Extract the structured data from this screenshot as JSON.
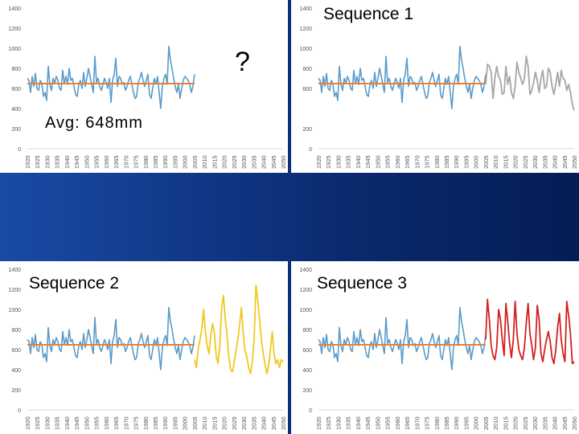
{
  "labels": {
    "avg": "Avg: 648mm",
    "question": "?",
    "seq1": "Sequence 1",
    "seq2": "Sequence 2",
    "seq3": "Sequence 3"
  },
  "colors": {
    "observed": "#5b9bc8",
    "average": "#e8803a",
    "sequence1": "#a6a6a6",
    "sequence2": "#f2c81e",
    "sequence3": "#d42020"
  },
  "chart_data": [
    {
      "type": "line",
      "title": "",
      "x_ticks": [
        "1920",
        "1925",
        "1930",
        "1935",
        "1940",
        "1945",
        "1950",
        "1955",
        "1960",
        "1965",
        "1970",
        "1975",
        "1980",
        "1985",
        "1990",
        "1995",
        "2000",
        "2005",
        "2010",
        "2015",
        "2020",
        "2025",
        "2030",
        "2035",
        "2040",
        "2045",
        "2050"
      ],
      "y_ticks": [
        "0",
        "200",
        "400",
        "600",
        "800",
        "1000",
        "1200",
        "1400"
      ],
      "ylim": [
        0,
        1400
      ],
      "xlim": [
        1920,
        2050
      ],
      "average_line": {
        "value": 648,
        "x": [
          1920,
          2005
        ]
      },
      "observed": {
        "start": 1920,
        "values": [
          700,
          680,
          560,
          720,
          620,
          750,
          600,
          580,
          680,
          650,
          520,
          560,
          480,
          820,
          640,
          580,
          700,
          650,
          720,
          680,
          600,
          580,
          780,
          650,
          720,
          640,
          800,
          680,
          700,
          620,
          540,
          520,
          640,
          680,
          600,
          760,
          620,
          700,
          800,
          720,
          640,
          560,
          920,
          660,
          700,
          620,
          580,
          640,
          700,
          660,
          600,
          700,
          460,
          680,
          740,
          900,
          620,
          720,
          700,
          640,
          660,
          580,
          620,
          680,
          720,
          640,
          560,
          500,
          520,
          660,
          700,
          760,
          680,
          620,
          680,
          740,
          540,
          500,
          600,
          700,
          640,
          720,
          560,
          400,
          620,
          700,
          740,
          640,
          1020,
          880,
          800,
          700,
          620,
          560,
          640,
          500,
          600,
          680,
          720,
          700,
          680,
          640,
          560,
          620,
          740
        ]
      },
      "projection": null
    },
    {
      "type": "line",
      "title": "",
      "series_name_label": "Sequence 1",
      "x_ticks": [
        "1920",
        "1925",
        "1930",
        "1935",
        "1940",
        "1945",
        "1950",
        "1955",
        "1960",
        "1965",
        "1970",
        "1975",
        "1980",
        "1985",
        "1990",
        "1995",
        "2000",
        "2005",
        "2010",
        "2015",
        "2020",
        "2025",
        "2030",
        "2035",
        "2040",
        "2045",
        "2050"
      ],
      "y_ticks": [
        "0",
        "200",
        "600",
        "800",
        "1000",
        "1200",
        "1400"
      ],
      "ylim": [
        0,
        1400
      ],
      "xlim": [
        1920,
        2050
      ],
      "average_line": {
        "value": 648,
        "x": [
          1920,
          2005
        ]
      },
      "observed": {
        "start": 1920,
        "values": [
          700,
          680,
          560,
          720,
          620,
          750,
          600,
          580,
          680,
          650,
          520,
          560,
          480,
          820,
          640,
          580,
          700,
          650,
          720,
          680,
          600,
          580,
          780,
          650,
          720,
          640,
          800,
          680,
          700,
          620,
          540,
          520,
          640,
          680,
          600,
          760,
          620,
          700,
          800,
          720,
          640,
          560,
          920,
          660,
          700,
          620,
          580,
          640,
          700,
          660,
          600,
          700,
          460,
          680,
          740,
          900,
          620,
          720,
          700,
          640,
          660,
          580,
          620,
          680,
          720,
          640,
          560,
          500,
          520,
          660,
          700,
          760,
          680,
          620,
          680,
          740,
          540,
          500,
          600,
          700,
          640,
          720,
          560,
          400,
          620,
          700,
          740,
          640,
          1020,
          880,
          800,
          700,
          620,
          560,
          640,
          500,
          600,
          680,
          720,
          700,
          680,
          640,
          560,
          620,
          740
        ]
      },
      "projection": {
        "start": 2005,
        "values": [
          640,
          840,
          820,
          760,
          500,
          700,
          820,
          720,
          680,
          540,
          560,
          820,
          640,
          720,
          560,
          500,
          620,
          860,
          760,
          700,
          640,
          700,
          920,
          820,
          540,
          580,
          660,
          760,
          680,
          560,
          700,
          780,
          600,
          620,
          800,
          760,
          620,
          540,
          640,
          760,
          620,
          780,
          700,
          680,
          580,
          640,
          560,
          440,
          380
        ]
      }
    },
    {
      "type": "line",
      "title": "",
      "series_name_label": "Sequence 2",
      "x_ticks": [
        "1920",
        "1925",
        "1930",
        "1935",
        "1940",
        "1945",
        "1950",
        "1955",
        "1960",
        "1965",
        "1970",
        "1975",
        "1980",
        "1985",
        "1990",
        "1995",
        "2000",
        "2005",
        "2010",
        "2015",
        "2020",
        "2025",
        "2030",
        "2035",
        "2040",
        "2045",
        "2050"
      ],
      "y_ticks": [
        "0",
        "200",
        "400",
        "600",
        "800",
        "1000",
        "1200",
        "1400"
      ],
      "ylim": [
        0,
        1400
      ],
      "xlim": [
        1920,
        2050
      ],
      "average_line": {
        "value": 648,
        "x": [
          1920,
          2005
        ]
      },
      "observed": {
        "start": 1920,
        "values": [
          700,
          680,
          560,
          720,
          620,
          750,
          600,
          580,
          680,
          650,
          520,
          560,
          480,
          820,
          640,
          580,
          700,
          650,
          720,
          680,
          600,
          580,
          780,
          650,
          720,
          640,
          800,
          680,
          700,
          620,
          540,
          520,
          640,
          680,
          600,
          760,
          620,
          700,
          800,
          720,
          640,
          560,
          920,
          660,
          700,
          620,
          580,
          640,
          700,
          660,
          600,
          700,
          460,
          680,
          740,
          900,
          620,
          720,
          700,
          640,
          660,
          580,
          620,
          680,
          720,
          640,
          560,
          500,
          520,
          660,
          700,
          760,
          680,
          620,
          680,
          740,
          540,
          500,
          600,
          700,
          640,
          720,
          560,
          400,
          620,
          700,
          740,
          640,
          1020,
          880,
          800,
          700,
          620,
          560,
          640,
          500,
          600,
          680,
          720,
          700,
          680,
          640,
          560,
          620,
          740
        ]
      },
      "projection": {
        "start": 2005,
        "values": [
          500,
          420,
          600,
          700,
          800,
          1000,
          780,
          640,
          560,
          740,
          860,
          760,
          540,
          460,
          640,
          1020,
          1140,
          900,
          740,
          520,
          400,
          380,
          480,
          600,
          700,
          860,
          1020,
          740,
          580,
          520,
          420,
          360,
          480,
          720,
          1240,
          1100,
          900,
          700,
          560,
          460,
          360,
          440,
          600,
          780,
          560,
          460,
          500,
          420,
          500,
          480
        ]
      }
    },
    {
      "type": "line",
      "title": "",
      "series_name_label": "Sequence 3",
      "x_ticks": [
        "1920",
        "1925",
        "1930",
        "1935",
        "1940",
        "1945",
        "1950",
        "1955",
        "1960",
        "1965",
        "1970",
        "1975",
        "1980",
        "1985",
        "1990",
        "1995",
        "2000",
        "2005",
        "2010",
        "2015",
        "2020",
        "2025",
        "2030",
        "2035",
        "2040",
        "2045",
        "2050"
      ],
      "y_ticks": [
        "0",
        "200",
        "400",
        "600",
        "800",
        "1000",
        "1200",
        "1400"
      ],
      "ylim": [
        0,
        1400
      ],
      "xlim": [
        1920,
        2050
      ],
      "average_line": {
        "value": 648,
        "x": [
          1920,
          2005
        ]
      },
      "observed": {
        "start": 1920,
        "values": [
          700,
          680,
          560,
          720,
          620,
          750,
          600,
          580,
          680,
          650,
          520,
          560,
          480,
          820,
          640,
          580,
          700,
          650,
          720,
          680,
          600,
          580,
          780,
          650,
          720,
          640,
          800,
          680,
          700,
          620,
          540,
          520,
          640,
          680,
          600,
          760,
          620,
          700,
          800,
          720,
          640,
          560,
          920,
          660,
          700,
          620,
          580,
          640,
          700,
          660,
          600,
          700,
          460,
          680,
          740,
          900,
          620,
          720,
          700,
          640,
          660,
          580,
          620,
          680,
          720,
          640,
          560,
          500,
          520,
          660,
          700,
          760,
          680,
          620,
          680,
          740,
          540,
          500,
          600,
          700,
          640,
          720,
          560,
          400,
          620,
          700,
          740,
          640,
          1020,
          880,
          800,
          700,
          620,
          560,
          640,
          500,
          600,
          680,
          720,
          700,
          680,
          640,
          560,
          620,
          740
        ]
      },
      "projection": {
        "start": 2005,
        "values": [
          700,
          1100,
          900,
          640,
          540,
          500,
          620,
          1000,
          900,
          700,
          540,
          1060,
          880,
          660,
          520,
          700,
          1080,
          760,
          600,
          540,
          500,
          620,
          860,
          1060,
          760,
          640,
          500,
          620,
          1040,
          900,
          560,
          480,
          600,
          700,
          780,
          680,
          520,
          460,
          600,
          820,
          960,
          700,
          560,
          480,
          1080,
          940,
          760,
          460,
          480
        ]
      }
    }
  ]
}
